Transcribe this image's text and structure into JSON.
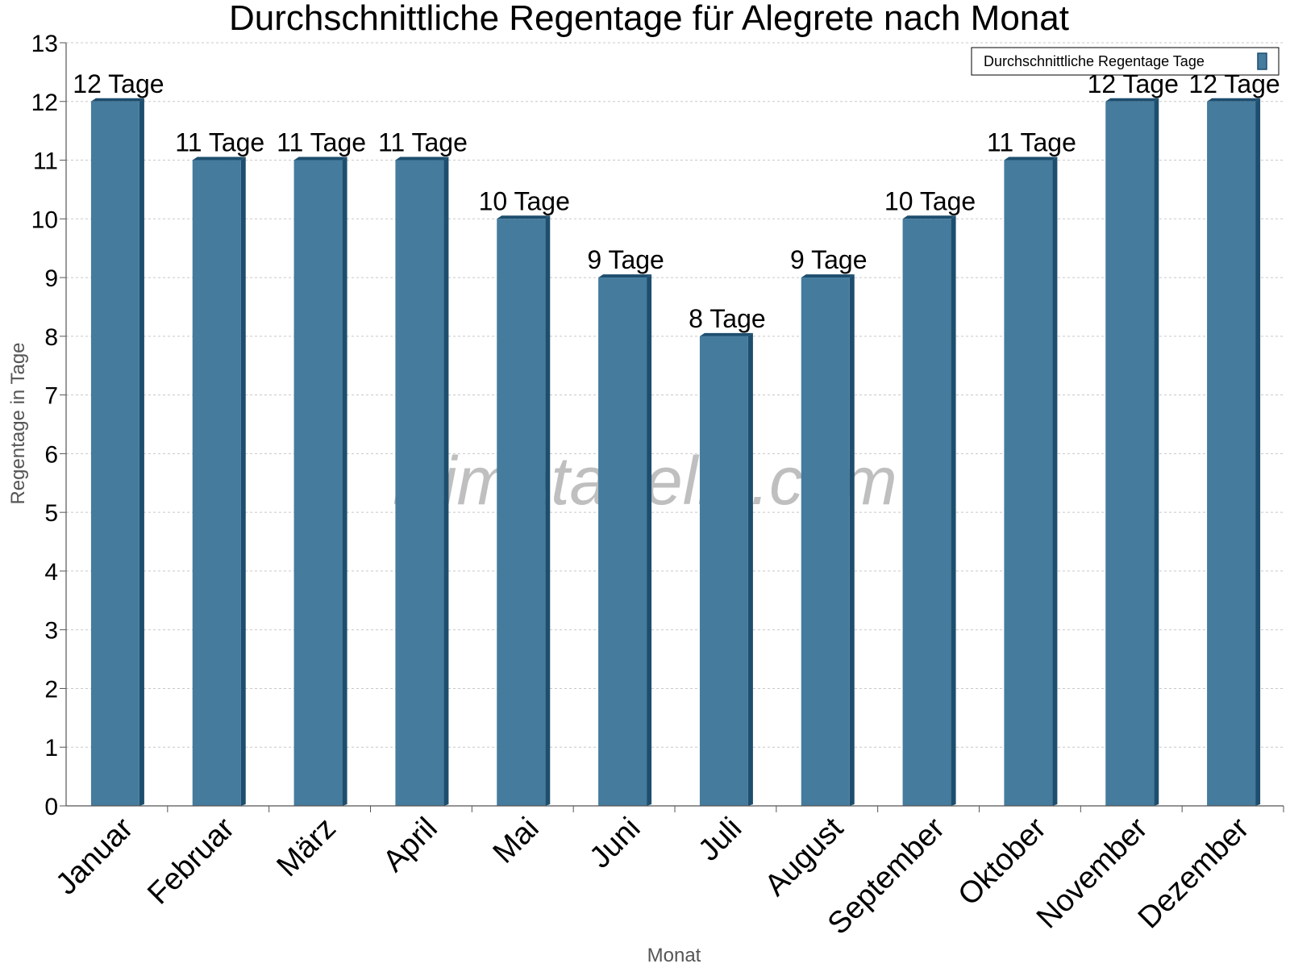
{
  "chart_data": {
    "type": "bar",
    "title": "Durchschnittliche Regentage für Alegrete nach Monat",
    "xlabel": "Monat",
    "ylabel": "Regentage in Tage",
    "categories": [
      "Januar",
      "Februar",
      "März",
      "April",
      "Mai",
      "Juni",
      "Juli",
      "August",
      "September",
      "Oktober",
      "November",
      "Dezember"
    ],
    "series": [
      {
        "name": "Durchschnittliche Regentage Tage",
        "values": [
          12,
          11,
          11,
          11,
          10,
          9,
          8,
          9,
          10,
          11,
          12,
          12
        ],
        "labels": [
          "12 Tage",
          "11 Tage",
          "11 Tage",
          "11 Tage",
          "10 Tage",
          "9 Tage",
          "8 Tage",
          "9 Tage",
          "10 Tage",
          "11 Tage",
          "12 Tage",
          "12 Tage"
        ]
      }
    ],
    "ylim": [
      0,
      13
    ],
    "yticks": [
      "0",
      "1",
      "2",
      "3",
      "4",
      "5",
      "6",
      "7",
      "8",
      "9",
      "10",
      "11",
      "12",
      "13"
    ],
    "grid": true,
    "legend_position": "top-right",
    "colors": {
      "bar": "#457b9d",
      "bar_side": "#1d4e6e",
      "grid": "#c8c8c8"
    },
    "watermark": "klimatabelle.com"
  }
}
